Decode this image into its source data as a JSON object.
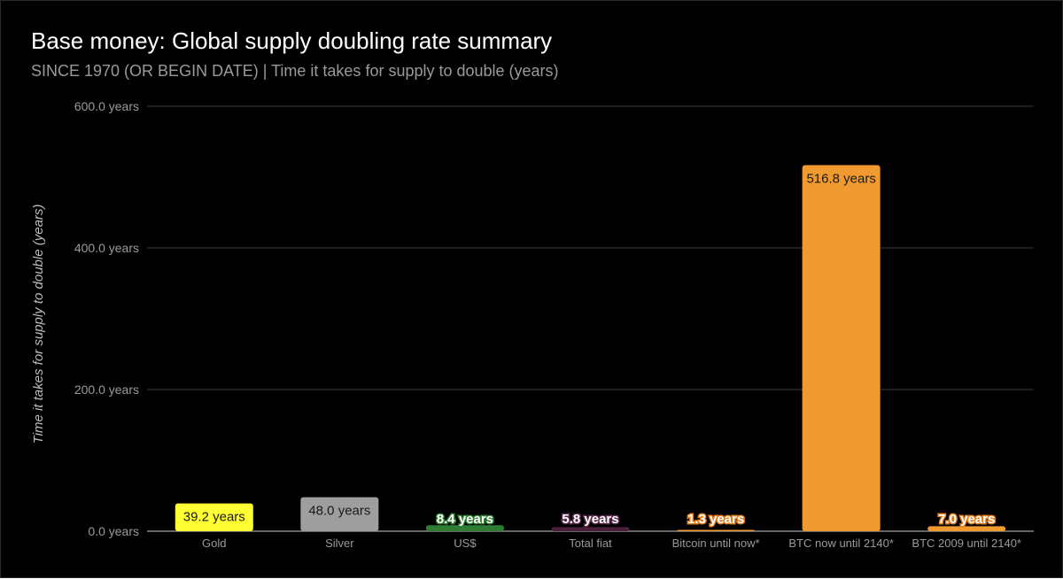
{
  "title": "Base money: Global supply doubling rate summary",
  "subtitle": "SINCE 1970 (OR BEGIN DATE) | Time it takes for supply to double (years)",
  "chart_data": {
    "type": "bar",
    "title": "Base money: Global supply doubling rate summary",
    "subtitle": "SINCE 1970 (OR BEGIN DATE) | Time it takes for supply to double (years)",
    "xlabel": "",
    "ylabel": "Time it takes for supply to double (years)",
    "ylim": [
      0,
      600
    ],
    "yticks": [
      {
        "value": 0,
        "label": "0.0 years"
      },
      {
        "value": 200,
        "label": "200.0 years"
      },
      {
        "value": 400,
        "label": "400.0 years"
      },
      {
        "value": 600,
        "label": "600.0 years"
      }
    ],
    "grid": true,
    "legend": "none",
    "categories": [
      "Gold",
      "Silver",
      "US$",
      "Total fiat",
      "Bitcoin until now*",
      "BTC now until 2140*",
      "BTC 2009 until 2140*"
    ],
    "values": [
      39.2,
      48.0,
      8.4,
      5.8,
      1.3,
      516.8,
      7.0
    ],
    "data_labels": [
      "39.2 years",
      "48.0 years",
      "8.4 years",
      "5.8 years",
      "1.3 years",
      "516.8 years",
      "7.0 years"
    ],
    "colors": [
      "#ffff33",
      "#9e9e9e",
      "#2e7d32",
      "#4a1f3a",
      "#f09a2f",
      "#f09a2f",
      "#f09a2f"
    ],
    "label_styles": [
      "dark",
      "dark",
      "outline-green",
      "outline-purple",
      "outline-orange",
      "dark",
      "outline-orange"
    ]
  }
}
